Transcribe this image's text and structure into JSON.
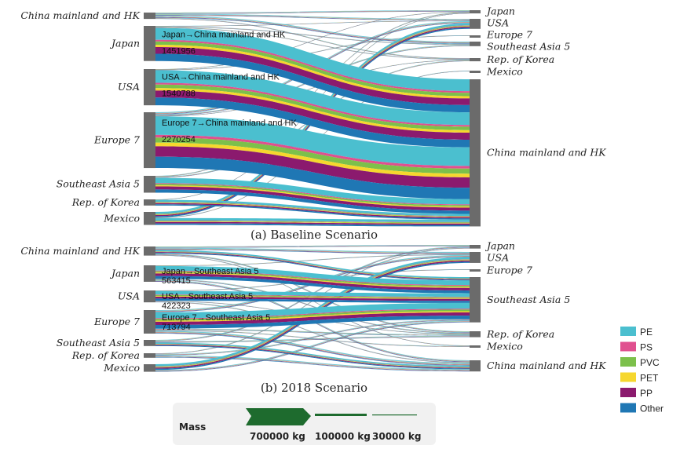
{
  "colors": {
    "node": "#6b6b6b",
    "mass_green": "#1e6b2e"
  },
  "polymers": [
    {
      "name": "PE",
      "color": "#4bbfcf"
    },
    {
      "name": "PS",
      "color": "#e0508f"
    },
    {
      "name": "PVC",
      "color": "#7cc04b"
    },
    {
      "name": "PET",
      "color": "#f6d72e"
    },
    {
      "name": "PP",
      "color": "#8b1a6e"
    },
    {
      "name": "Other",
      "color": "#1f77b4"
    }
  ],
  "polymer_share": [
    0.36,
    0.05,
    0.1,
    0.07,
    0.2,
    0.22
  ],
  "scenarios": [
    {
      "title": "(a) Baseline Scenario",
      "sources": [
        "China mainland and HK",
        "Japan",
        "USA",
        "Europe 7",
        "Southeast Asia 5",
        "Rep. of Korea",
        "Mexico"
      ],
      "targets": [
        "Japan",
        "USA",
        "Europe 7",
        "Southeast Asia 5",
        "Rep. of Korea",
        "Mexico",
        "China mainland and HK"
      ],
      "flows": [
        {
          "s": 0,
          "t": 0,
          "v": 60000
        },
        {
          "s": 0,
          "t": 1,
          "v": 80000
        },
        {
          "s": 0,
          "t": 3,
          "v": 100000
        },
        {
          "s": 0,
          "t": 4,
          "v": 40000
        },
        {
          "s": 1,
          "t": 1,
          "v": 20000
        },
        {
          "s": 1,
          "t": 3,
          "v": 40000
        },
        {
          "s": 1,
          "t": 4,
          "v": 30000
        },
        {
          "s": 1,
          "t": 6,
          "v": 1451956,
          "label": "Japan→China mainland and HK",
          "value_label": "1451956"
        },
        {
          "s": 2,
          "t": 0,
          "v": 20000
        },
        {
          "s": 2,
          "t": 2,
          "v": 30000
        },
        {
          "s": 2,
          "t": 6,
          "v": 1540788,
          "label": "USA→China mainland and HK",
          "value_label": "1540788"
        },
        {
          "s": 3,
          "t": 1,
          "v": 100000
        },
        {
          "s": 3,
          "t": 3,
          "v": 60000
        },
        {
          "s": 3,
          "t": 4,
          "v": 20000
        },
        {
          "s": 3,
          "t": 6,
          "v": 2270254,
          "label": "Europe 7→China mainland and HK",
          "value_label": "2270254"
        },
        {
          "s": 4,
          "t": 0,
          "v": 40000
        },
        {
          "s": 4,
          "t": 4,
          "v": 50000
        },
        {
          "s": 4,
          "t": 6,
          "v": 650000
        },
        {
          "s": 5,
          "t": 0,
          "v": 20000
        },
        {
          "s": 5,
          "t": 6,
          "v": 250000
        },
        {
          "s": 6,
          "t": 1,
          "v": 240000
        },
        {
          "s": 6,
          "t": 5,
          "v": 30000
        },
        {
          "s": 6,
          "t": 6,
          "v": 300000
        }
      ]
    },
    {
      "title": "(b) 2018 Scenario",
      "sources": [
        "China mainland and HK",
        "Japan",
        "USA",
        "Europe 7",
        "Southeast Asia 5",
        "Rep. of Korea",
        "Mexico"
      ],
      "targets": [
        "Japan",
        "USA",
        "Europe 7",
        "Southeast Asia 5",
        "Rep. of Korea",
        "Mexico",
        "China mainland and HK"
      ],
      "flows": [
        {
          "s": 0,
          "t": 0,
          "v": 60000
        },
        {
          "s": 0,
          "t": 1,
          "v": 100000
        },
        {
          "s": 0,
          "t": 3,
          "v": 150000
        },
        {
          "s": 0,
          "t": 4,
          "v": 60000
        },
        {
          "s": 0,
          "t": 5,
          "v": 30000
        },
        {
          "s": 1,
          "t": 1,
          "v": 30000
        },
        {
          "s": 1,
          "t": 3,
          "v": 563415,
          "label": "Japan→Southeast Asia 5",
          "value_label": "563415"
        },
        {
          "s": 1,
          "t": 4,
          "v": 50000
        },
        {
          "s": 1,
          "t": 6,
          "v": 80000
        },
        {
          "s": 2,
          "t": 2,
          "v": 30000
        },
        {
          "s": 2,
          "t": 3,
          "v": 422323,
          "label": "USA→Southeast Asia 5",
          "value_label": "422323"
        },
        {
          "s": 2,
          "t": 4,
          "v": 30000
        },
        {
          "s": 2,
          "t": 6,
          "v": 40000
        },
        {
          "s": 3,
          "t": 1,
          "v": 100000
        },
        {
          "s": 3,
          "t": 3,
          "v": 713794,
          "label": "Europe 7→Southeast Asia 5",
          "value_label": "713794"
        },
        {
          "s": 3,
          "t": 4,
          "v": 60000
        },
        {
          "s": 3,
          "t": 5,
          "v": 40000
        },
        {
          "s": 3,
          "t": 6,
          "v": 120000
        },
        {
          "s": 4,
          "t": 0,
          "v": 60000
        },
        {
          "s": 4,
          "t": 4,
          "v": 60000
        },
        {
          "s": 4,
          "t": 6,
          "v": 150000
        },
        {
          "s": 5,
          "t": 0,
          "v": 40000
        },
        {
          "s": 5,
          "t": 3,
          "v": 60000
        },
        {
          "s": 5,
          "t": 6,
          "v": 100000
        },
        {
          "s": 6,
          "t": 1,
          "v": 250000
        },
        {
          "s": 6,
          "t": 3,
          "v": 80000
        }
      ]
    }
  ],
  "mass_legend": {
    "title": "Mass",
    "items": [
      {
        "label": "700000 kg",
        "value": 700000
      },
      {
        "label": "100000 kg",
        "value": 100000
      },
      {
        "label": "30000 kg",
        "value": 30000
      }
    ]
  }
}
